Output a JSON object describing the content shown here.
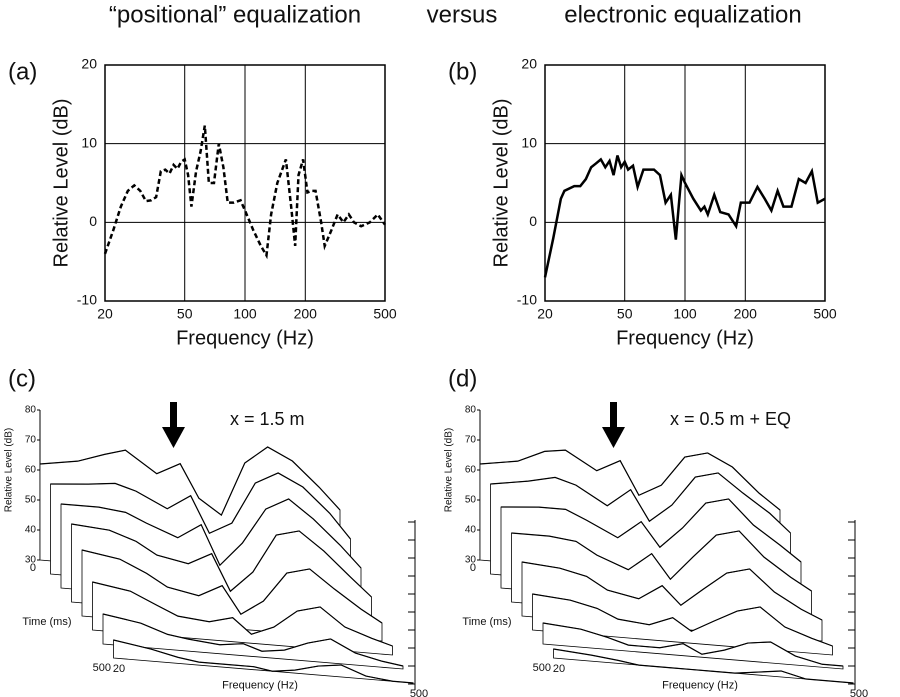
{
  "header": {
    "left": "“positional” equalization",
    "middle": "versus",
    "right": "electronic equalization"
  },
  "chart_data": [
    {
      "type": "line",
      "panel": "(a)",
      "xscale": "log",
      "grid": true,
      "color": "#000",
      "line_style": "dashed",
      "xlabel": "Frequency (Hz)",
      "ylabel": "Relative Level (dB)",
      "xlim": [
        20,
        500
      ],
      "xticks": [
        20,
        50,
        100,
        200,
        500
      ],
      "ylim": [
        -10,
        20
      ],
      "yticks": [
        -10,
        0,
        10,
        20
      ],
      "x": [
        20,
        22,
        24,
        26,
        28,
        30,
        32,
        34,
        36,
        38,
        40,
        42,
        44,
        46,
        48,
        50,
        52,
        54,
        57,
        60,
        63,
        66,
        70,
        74,
        78,
        82,
        88,
        95,
        100,
        110,
        120,
        128,
        135,
        145,
        160,
        170,
        178,
        185,
        195,
        205,
        215,
        225,
        240,
        250,
        270,
        290,
        310,
        330,
        350,
        380,
        420,
        460,
        500
      ],
      "values": [
        -4,
        -1,
        2,
        4,
        4.7,
        4,
        2.7,
        2.8,
        3.2,
        6.5,
        6.7,
        6.2,
        7.3,
        6.8,
        7.7,
        8,
        6,
        2,
        6.5,
        9,
        12.3,
        5,
        5,
        10,
        7,
        2.5,
        2.5,
        2.8,
        1.5,
        -1,
        -3,
        -4.2,
        1,
        5,
        8,
        2,
        -3,
        6,
        8,
        3.8,
        4,
        4,
        0,
        -3,
        -1,
        1,
        0,
        1,
        0,
        -0.5,
        0,
        1,
        -0.3
      ]
    },
    {
      "type": "line",
      "panel": "(b)",
      "xscale": "log",
      "grid": true,
      "color": "#000",
      "line_style": "solid",
      "xlabel": "Frequency (Hz)",
      "ylabel": "Relative Level (dB)",
      "xlim": [
        20,
        500
      ],
      "xticks": [
        20,
        50,
        100,
        200,
        500
      ],
      "ylim": [
        -10,
        20
      ],
      "yticks": [
        -10,
        0,
        10,
        20
      ],
      "x": [
        20,
        22,
        24,
        25,
        28,
        30,
        32,
        34,
        36,
        38,
        40,
        42,
        44,
        46,
        48,
        50,
        52,
        55,
        58,
        62,
        70,
        75,
        80,
        85,
        90,
        93,
        96,
        100,
        110,
        120,
        125,
        130,
        140,
        150,
        165,
        180,
        190,
        210,
        230,
        250,
        270,
        290,
        310,
        340,
        370,
        400,
        430,
        460,
        500
      ],
      "values": [
        -7,
        -2,
        3,
        4,
        4.6,
        4.6,
        5.5,
        7,
        7.5,
        8,
        7,
        7.8,
        6,
        8.5,
        7,
        7.7,
        6.7,
        7.2,
        4.5,
        6.7,
        6.7,
        6,
        2.5,
        3.5,
        -2.2,
        2,
        6,
        5,
        3,
        1.5,
        2,
        1,
        3.5,
        1.3,
        1,
        -0.5,
        2.5,
        2.5,
        4.5,
        3,
        1.5,
        4,
        2,
        2,
        5.5,
        5,
        6.5,
        2.5,
        3
      ]
    },
    {
      "type": "waterfall",
      "panel": "(c)",
      "annotation": "x = 1.5 m",
      "ylabel": "Relative Level (dB)",
      "time_label": "Time (ms)",
      "xlabel": "Frequency (Hz)",
      "xlim": [
        20,
        500
      ],
      "xticks": [
        20,
        500
      ],
      "tlim": [
        0,
        500
      ],
      "tticks": [
        0,
        500
      ],
      "zlim": [
        30,
        80
      ],
      "zticks": [
        30,
        40,
        50,
        60,
        70,
        80
      ],
      "x": [
        20,
        30,
        40,
        50,
        70,
        90,
        110,
        140,
        180,
        230,
        300,
        400,
        500
      ],
      "times": [
        0,
        70,
        140,
        210,
        280,
        350,
        420,
        490
      ],
      "slices": [
        [
          62,
          64,
          67,
          69,
          62,
          66,
          55,
          50,
          68,
          74,
          70,
          62,
          55
        ],
        [
          60,
          61,
          62,
          60,
          55,
          60,
          48,
          52,
          66,
          70,
          66,
          58,
          50
        ],
        [
          58,
          58,
          57,
          54,
          50,
          55,
          42,
          50,
          62,
          66,
          60,
          52,
          45
        ],
        [
          56,
          55,
          52,
          48,
          46,
          50,
          38,
          45,
          58,
          60,
          54,
          46,
          40
        ],
        [
          52,
          50,
          46,
          42,
          40,
          44,
          35,
          40,
          50,
          52,
          46,
          40,
          36
        ],
        [
          46,
          44,
          40,
          37,
          36,
          38,
          33,
          36,
          42,
          44,
          38,
          35,
          33
        ],
        [
          40,
          38,
          35,
          34,
          33,
          34,
          32,
          33,
          36,
          38,
          34,
          32,
          31
        ],
        [
          36,
          34,
          32,
          31,
          31,
          31,
          30,
          31,
          33,
          34,
          31,
          30,
          30
        ]
      ]
    },
    {
      "type": "waterfall",
      "panel": "(d)",
      "annotation": "x = 0.5 m + EQ",
      "ylabel": "Relative Level (dB)",
      "time_label": "Time (ms)",
      "xlabel": "Frequency (Hz)",
      "xlim": [
        20,
        500
      ],
      "xticks": [
        20,
        500
      ],
      "tlim": [
        0,
        500
      ],
      "tticks": [
        0,
        500
      ],
      "zlim": [
        30,
        80
      ],
      "zticks": [
        30,
        40,
        50,
        60,
        70,
        80
      ],
      "x": [
        20,
        30,
        40,
        50,
        70,
        90,
        110,
        140,
        180,
        230,
        300,
        400,
        500
      ],
      "times": [
        0,
        70,
        140,
        210,
        280,
        350,
        420,
        490
      ],
      "slices": [
        [
          62,
          64,
          68,
          69,
          63,
          67,
          56,
          60,
          70,
          72,
          68,
          60,
          55
        ],
        [
          60,
          62,
          64,
          62,
          56,
          62,
          52,
          58,
          68,
          70,
          64,
          58,
          52
        ],
        [
          57,
          58,
          58,
          55,
          50,
          56,
          48,
          55,
          64,
          66,
          58,
          52,
          47
        ],
        [
          53,
          53,
          52,
          48,
          44,
          50,
          42,
          50,
          58,
          60,
          52,
          46,
          42
        ],
        [
          48,
          47,
          45,
          41,
          39,
          44,
          38,
          44,
          50,
          52,
          45,
          40,
          37
        ],
        [
          42,
          41,
          39,
          36,
          35,
          38,
          34,
          38,
          42,
          44,
          38,
          35,
          33
        ],
        [
          37,
          36,
          34,
          32,
          32,
          34,
          31,
          33,
          36,
          37,
          33,
          31,
          31
        ],
        [
          33,
          32,
          31,
          30,
          30,
          30,
          30,
          30,
          31,
          32,
          30,
          30,
          30
        ]
      ]
    }
  ]
}
